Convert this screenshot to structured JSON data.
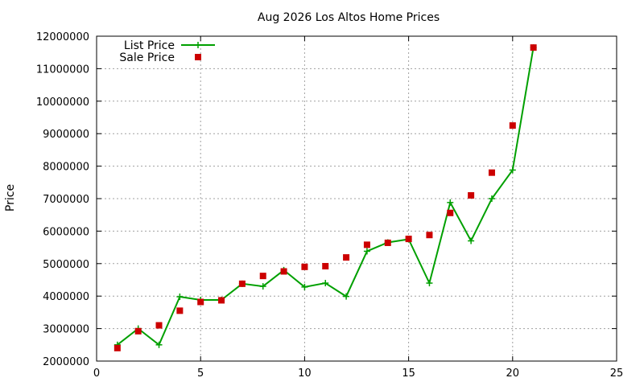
{
  "chart_data": {
    "type": "line",
    "title": "Aug 2026 Los Altos Home Prices",
    "xlabel": "",
    "ylabel": "Price",
    "xlim": [
      0,
      25
    ],
    "ylim": [
      2000000,
      12000000
    ],
    "xticks": [
      0,
      5,
      10,
      15,
      20,
      25
    ],
    "yticks": [
      2000000,
      3000000,
      4000000,
      5000000,
      6000000,
      7000000,
      8000000,
      9000000,
      10000000,
      11000000,
      12000000
    ],
    "grid": true,
    "legend_position": "top-left",
    "series": [
      {
        "name": "List Price",
        "style": "line with cross markers",
        "color": "#00a000",
        "x": [
          1,
          2,
          3,
          4,
          5,
          6,
          7,
          8,
          9,
          10,
          11,
          12,
          13,
          14,
          15,
          16,
          17,
          18,
          19,
          20,
          21
        ],
        "y": [
          2500000,
          3000000,
          2500000,
          3980000,
          3880000,
          3880000,
          4380000,
          4300000,
          4800000,
          4280000,
          4400000,
          3990000,
          5380000,
          5650000,
          5750000,
          4400000,
          6880000,
          5700000,
          7000000,
          7880000,
          11650000
        ]
      },
      {
        "name": "Sale Price",
        "style": "square markers",
        "color": "#cc0000",
        "x": [
          1,
          2,
          3,
          4,
          5,
          6,
          7,
          8,
          9,
          10,
          11,
          12,
          13,
          14,
          15,
          16,
          17,
          18,
          19,
          20,
          21
        ],
        "y": [
          2400000,
          2920000,
          3100000,
          3550000,
          3820000,
          3870000,
          4380000,
          4620000,
          4760000,
          4900000,
          4920000,
          5190000,
          5580000,
          5640000,
          5760000,
          5880000,
          6560000,
          7100000,
          7800000,
          9250000,
          11650000
        ]
      }
    ]
  }
}
